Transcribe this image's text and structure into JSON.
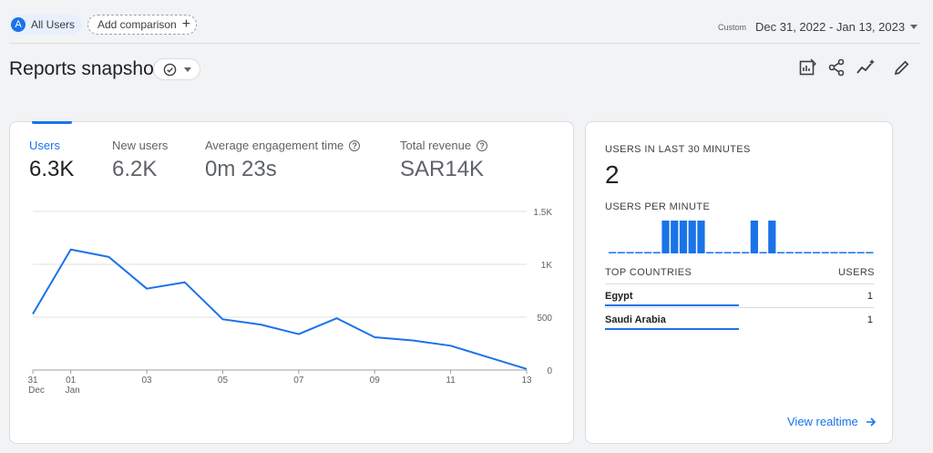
{
  "header": {
    "segment_avatar": "A",
    "segment_label": "All Users",
    "add_comparison_label": "Add comparison",
    "date_type": "Custom",
    "date_range": "Dec 31, 2022 - Jan 13, 2023"
  },
  "page": {
    "title": "Reports snapshot"
  },
  "metrics": [
    {
      "label": "Users",
      "value": "6.3K",
      "active": true
    },
    {
      "label": "New users",
      "value": "6.2K"
    },
    {
      "label": "Average engagement time",
      "value": "0m 23s",
      "help": "?"
    },
    {
      "label": "Total revenue",
      "value": "SAR14K",
      "help": "?"
    }
  ],
  "chart_data": {
    "type": "line",
    "x_day_labels": [
      "31",
      "01",
      "03",
      "05",
      "07",
      "09",
      "11",
      "13"
    ],
    "x_month_labels": [
      "Dec",
      "Jan"
    ],
    "x": [
      "Dec 31",
      "Jan 1",
      "Jan 2",
      "Jan 3",
      "Jan 4",
      "Jan 5",
      "Jan 6",
      "Jan 7",
      "Jan 8",
      "Jan 9",
      "Jan 10",
      "Jan 11",
      "Jan 12",
      "Jan 13"
    ],
    "series": [
      {
        "values": [
          530,
          1140,
          1070,
          770,
          830,
          480,
          430,
          340,
          490,
          310,
          280,
          230,
          120,
          10
        ]
      }
    ],
    "y_ticks": [
      "1.5K",
      "1K",
      "500",
      "0"
    ],
    "ylim": [
      0,
      1500
    ],
    "grid": true,
    "color": "#1a73e8"
  },
  "realtime": {
    "title": "USERS IN LAST 30 MINUTES",
    "count": "2",
    "per_minute_title": "USERS PER MINUTE",
    "per_minute": [
      0,
      0,
      0,
      0,
      0,
      0,
      1,
      1,
      1,
      1,
      1,
      0,
      0,
      0,
      0,
      0,
      1,
      0,
      1,
      0,
      0,
      0,
      0,
      0,
      0,
      0,
      0,
      0,
      0,
      0
    ],
    "countries_header": "TOP COUNTRIES",
    "users_header": "USERS",
    "countries": [
      {
        "name": "Egypt",
        "users": "1",
        "share": 1.0
      },
      {
        "name": "Saudi Arabia",
        "users": "1",
        "share": 1.0
      }
    ],
    "view_link": "View realtime"
  },
  "icons": {
    "toolbar": [
      "customize-report-icon",
      "share-icon",
      "insights-icon",
      "edit-icon"
    ]
  }
}
